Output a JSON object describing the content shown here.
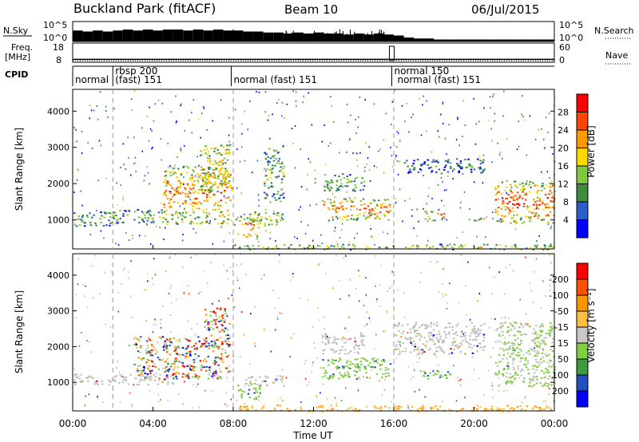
{
  "header": {
    "site": "Buckland Park (fitACF)",
    "beam": "Beam 10",
    "date": "06/Jul/2015"
  },
  "colors": {
    "power_scale": [
      "#0000ff",
      "#2a5ec8",
      "#3c8c3c",
      "#7fc840",
      "#ffd700",
      "#ff9b00",
      "#ff4500",
      "#ff0000"
    ],
    "velocity_scale": [
      "#ff0000",
      "#ff5000",
      "#ff9600",
      "#ffbf40",
      "#c8c8c8",
      "#7fd040",
      "#3c9c3c",
      "#2050c0",
      "#0000ff"
    ],
    "ground_scatter": "#c0c0c0",
    "dash_line": "#999999"
  },
  "chart_data": [
    {
      "type": "line",
      "name": "sky-noise-panel",
      "labels": {
        "left": "N.Sky",
        "right": "N.Search"
      },
      "left_ticks": [
        "10^5",
        "10^0"
      ],
      "right_ticks": [
        "10^5",
        "10^0"
      ],
      "x_hours": [
        0,
        0.5,
        1,
        1.5,
        2,
        2.5,
        3,
        3.5,
        4,
        4.5,
        5,
        5.5,
        6,
        6.5,
        7,
        7.5,
        8,
        8.5,
        9,
        9.5,
        10,
        10.5,
        11,
        11.5,
        12,
        12.5,
        13,
        13.5,
        14,
        14.5,
        15,
        15.5,
        16,
        16.5,
        17,
        18,
        19,
        20,
        21,
        22,
        23,
        24
      ],
      "sky_relative": [
        0.55,
        0.5,
        0.55,
        0.5,
        0.55,
        0.6,
        0.55,
        0.6,
        0.55,
        0.6,
        0.6,
        0.55,
        0.6,
        0.55,
        0.6,
        0.55,
        0.55,
        0.5,
        0.5,
        0.45,
        0.45,
        0.4,
        0.45,
        0.4,
        0.45,
        0.4,
        0.4,
        0.35,
        0.4,
        0.35,
        0.4,
        0.35,
        0.3,
        0.2,
        0.15,
        0.1,
        0.1,
        0.1,
        0.1,
        0.1,
        0.1,
        0.1
      ]
    },
    {
      "type": "line",
      "name": "frequency-panel",
      "labels": {
        "left_top": "Freq.",
        "left_unit": "[MHz]",
        "right": "Nave"
      },
      "left_ticks": [
        "18",
        "8"
      ],
      "right_ticks": [
        "60",
        "0"
      ],
      "frequency_mhz": 9.5,
      "nave_spike_hour": 15.9
    },
    {
      "type": "table",
      "name": "cpid-panel",
      "label": "CPID",
      "segments": [
        {
          "start_hour": 0,
          "end_hour": 2,
          "name": "normal"
        },
        {
          "start_hour": 2,
          "end_hour": 7.9,
          "name": "rbsp 200",
          "line2": "(fast) 151"
        },
        {
          "start_hour": 7.9,
          "end_hour": 15.9,
          "name": "normal (fast) 151"
        },
        {
          "start_hour": 15.9,
          "end_hour": 24,
          "name": "normal 150",
          "line2": "normal (fast) 151"
        }
      ]
    },
    {
      "type": "heatmap",
      "name": "power",
      "ylabel": "Slant Range [km]",
      "xlim": [
        0,
        24
      ],
      "ylim": [
        200,
        4600
      ],
      "yticks": [
        1000,
        2000,
        3000,
        4000
      ],
      "colorbar_label": "Power [dB]",
      "colorbar_ticks": [
        4,
        8,
        12,
        16,
        20,
        24,
        28
      ],
      "regions": [
        {
          "t0": 0,
          "t1": 2,
          "r0": 850,
          "r1": 1250,
          "level": 0.35
        },
        {
          "t0": 2,
          "t1": 4.5,
          "r0": 900,
          "r1": 1300,
          "level": 0.4
        },
        {
          "t0": 4.5,
          "t1": 7.9,
          "r0": 900,
          "r1": 2500,
          "level": 0.8
        },
        {
          "t0": 6.3,
          "t1": 7.8,
          "r0": 1800,
          "r1": 3100,
          "level": 0.75
        },
        {
          "t0": 8.1,
          "t1": 9.3,
          "r0": 500,
          "r1": 1100,
          "level": 0.85
        },
        {
          "t0": 8.8,
          "t1": 10.5,
          "r0": 850,
          "r1": 1250,
          "level": 0.55
        },
        {
          "t0": 9.5,
          "t1": 10.5,
          "r0": 1500,
          "r1": 3000,
          "level": 0.4
        },
        {
          "t0": 12.4,
          "t1": 15.8,
          "r0": 1000,
          "r1": 1600,
          "level": 0.85
        },
        {
          "t0": 12.5,
          "t1": 14.5,
          "r0": 1800,
          "r1": 2300,
          "level": 0.4
        },
        {
          "t0": 16.5,
          "t1": 20.5,
          "r0": 2300,
          "r1": 2700,
          "level": 0.2
        },
        {
          "t0": 17.5,
          "t1": 18.5,
          "r0": 1000,
          "r1": 1300,
          "level": 0.7
        },
        {
          "t0": 19.5,
          "t1": 20.5,
          "r0": 1000,
          "r1": 1100,
          "level": 0.55
        },
        {
          "t0": 21,
          "t1": 24,
          "r0": 900,
          "r1": 2100,
          "level": 0.9
        },
        {
          "t0": 8,
          "t1": 24,
          "r0": 200,
          "r1": 350,
          "level": 0.5
        }
      ]
    },
    {
      "type": "heatmap",
      "name": "velocity",
      "ylabel": "Slant Range [km]",
      "xlabel": "Time UT",
      "xlim": [
        0,
        24
      ],
      "ylim": [
        200,
        4600
      ],
      "yticks": [
        1000,
        2000,
        3000,
        4000
      ],
      "xticks": [
        "00:00",
        "04:00",
        "08:00",
        "12:00",
        "16:00",
        "20:00",
        "00:00"
      ],
      "colorbar_label": "Velocity [m s⁻¹]",
      "colorbar_ticks": [
        -200,
        -100,
        -50,
        -15,
        15,
        50,
        100,
        200
      ],
      "regions": [
        {
          "t0": 0,
          "t1": 5,
          "r0": 950,
          "r1": 1250,
          "kind": "ground"
        },
        {
          "t0": 3,
          "t1": 7.8,
          "r0": 1100,
          "r1": 2300,
          "kind": "mixed"
        },
        {
          "t0": 6.5,
          "t1": 7.8,
          "r0": 2000,
          "r1": 3100,
          "kind": "mixed"
        },
        {
          "t0": 8.2,
          "t1": 9.3,
          "r0": 550,
          "r1": 1000,
          "kind": "green"
        },
        {
          "t0": 8.6,
          "t1": 10.5,
          "r0": 900,
          "r1": 1200,
          "kind": "ground"
        },
        {
          "t0": 12.4,
          "t1": 15.8,
          "r0": 1100,
          "r1": 1700,
          "kind": "green"
        },
        {
          "t0": 12.4,
          "t1": 14.5,
          "r0": 1800,
          "r1": 2400,
          "kind": "ground"
        },
        {
          "t0": 16,
          "t1": 20.5,
          "r0": 1800,
          "r1": 2700,
          "kind": "ground"
        },
        {
          "t0": 17.2,
          "t1": 18.8,
          "r0": 1100,
          "r1": 1350,
          "kind": "green"
        },
        {
          "t0": 21,
          "t1": 24,
          "r0": 900,
          "r1": 2700,
          "kind": "greenground"
        },
        {
          "t0": 8,
          "t1": 24,
          "r0": 200,
          "r1": 380,
          "kind": "orange"
        }
      ]
    }
  ]
}
